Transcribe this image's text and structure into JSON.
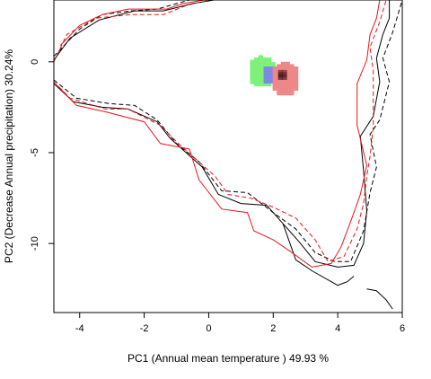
{
  "chart_data": {
    "type": "contour-density",
    "title": "",
    "xlabel": "PC1 (Annual mean temperature ) 49.93 %",
    "ylabel": "PC2 (Decrease Annual precipitation) 30.24%",
    "xlim": [
      -4.8,
      6.0
    ],
    "ylim": [
      -13.8,
      3.4
    ],
    "x_ticks": [
      -4,
      -2,
      0,
      2,
      4,
      6
    ],
    "y_ticks": [
      0,
      -5,
      -10
    ],
    "grid": false,
    "legend": "none",
    "colors": {
      "solid_black": "#000000",
      "dashed_black": "#000000",
      "solid_red": "#e8151f",
      "dashed_red": "#e8151f",
      "green": "#7cf27c",
      "blue": "#7c7cf0",
      "red_fill": "#ec8888",
      "dark_core": "#3a0d0d"
    },
    "series": [
      {
        "style": "solid-black",
        "upper_edge": [
          [
            -4.8,
            0.1
          ],
          [
            -4.3,
            1.3
          ],
          [
            -3.4,
            2.3
          ],
          [
            -2.3,
            2.8
          ],
          [
            -1.4,
            2.8
          ],
          [
            -0.5,
            3.2
          ],
          [
            0.5,
            3.5
          ]
        ],
        "outline": [
          [
            -4.8,
            -1.2
          ],
          [
            -4.2,
            -2.2
          ],
          [
            -3.3,
            -2.5
          ],
          [
            -2.5,
            -2.6
          ],
          [
            -1.6,
            -3.3
          ],
          [
            -1.2,
            -4.2
          ],
          [
            -0.7,
            -5.0
          ],
          [
            -0.2,
            -5.8
          ],
          [
            0.3,
            -7.3
          ],
          [
            1.0,
            -7.8
          ],
          [
            1.8,
            -7.9
          ],
          [
            2.3,
            -8.9
          ],
          [
            2.8,
            -9.9
          ],
          [
            3.3,
            -11.0
          ],
          [
            4.0,
            -11.3
          ],
          [
            4.5,
            -11.2
          ],
          [
            4.8,
            -10.0
          ],
          [
            4.9,
            -8.2
          ],
          [
            4.8,
            -6.0
          ],
          [
            4.7,
            -4.1
          ],
          [
            5.1,
            -3.0
          ],
          [
            5.3,
            -1.1
          ],
          [
            5.2,
            0.2
          ],
          [
            5.4,
            1.5
          ],
          [
            5.6,
            2.4
          ],
          [
            5.6,
            3.4
          ]
        ],
        "tail": [
          [
            2.3,
            -8.9
          ],
          [
            2.7,
            -10.9
          ],
          [
            3.2,
            -11.5
          ],
          [
            4.0,
            -12.3
          ],
          [
            4.3,
            -12.1
          ],
          [
            4.5,
            -11.8
          ]
        ],
        "corner": [
          [
            4.9,
            -12.5
          ],
          [
            5.2,
            -12.6
          ],
          [
            5.5,
            -13.1
          ],
          [
            5.7,
            -13.6
          ]
        ]
      },
      {
        "style": "dashed-black",
        "upper_edge": [
          [
            -4.8,
            0.3
          ],
          [
            -4.0,
            1.8
          ],
          [
            -3.3,
            2.6
          ],
          [
            -2.4,
            2.8
          ],
          [
            -1.6,
            2.9
          ],
          [
            -0.6,
            3.4
          ],
          [
            0.4,
            3.6
          ]
        ],
        "outline": [
          [
            -4.8,
            -1.0
          ],
          [
            -4.1,
            -2.0
          ],
          [
            -3.1,
            -2.3
          ],
          [
            -2.3,
            -2.4
          ],
          [
            -1.6,
            -3.2
          ],
          [
            -1.0,
            -4.5
          ],
          [
            -0.3,
            -5.5
          ],
          [
            0.4,
            -7.1
          ],
          [
            1.2,
            -7.2
          ],
          [
            2.0,
            -8.3
          ],
          [
            2.7,
            -9.2
          ],
          [
            3.3,
            -10.5
          ],
          [
            3.9,
            -11.0
          ],
          [
            4.4,
            -11.0
          ],
          [
            4.8,
            -9.3
          ],
          [
            5.0,
            -7.2
          ],
          [
            5.2,
            -5.8
          ],
          [
            5.0,
            -4.0
          ],
          [
            5.3,
            -3.2
          ],
          [
            5.6,
            -1.1
          ],
          [
            5.4,
            0.2
          ],
          [
            5.7,
            1.6
          ],
          [
            5.9,
            2.8
          ],
          [
            6.0,
            3.4
          ]
        ]
      },
      {
        "style": "solid-red",
        "upper_edge": [
          [
            -4.6,
            0.9
          ],
          [
            -4.0,
            2.0
          ],
          [
            -3.3,
            2.6
          ],
          [
            -2.5,
            2.9
          ],
          [
            -1.3,
            2.9
          ],
          [
            -0.8,
            3.2
          ],
          [
            0.2,
            3.5
          ]
        ],
        "outline": [
          [
            -4.7,
            -1.3
          ],
          [
            -4.1,
            -2.4
          ],
          [
            -3.1,
            -2.8
          ],
          [
            -2.0,
            -3.3
          ],
          [
            -1.5,
            -4.5
          ],
          [
            -0.6,
            -4.8
          ],
          [
            -0.3,
            -6.5
          ],
          [
            0.4,
            -8.1
          ],
          [
            1.2,
            -8.3
          ],
          [
            1.4,
            -9.3
          ],
          [
            2.0,
            -9.8
          ],
          [
            2.5,
            -10.4
          ],
          [
            3.2,
            -11.3
          ],
          [
            3.8,
            -11.1
          ],
          [
            4.1,
            -10.2
          ],
          [
            4.4,
            -8.8
          ],
          [
            4.7,
            -7.3
          ],
          [
            4.9,
            -5.7
          ],
          [
            4.6,
            -3.5
          ],
          [
            4.6,
            -1.2
          ],
          [
            4.9,
            0.1
          ],
          [
            5.0,
            1.5
          ],
          [
            5.2,
            2.4
          ],
          [
            5.3,
            3.4
          ]
        ]
      },
      {
        "style": "dashed-red",
        "upper_edge": [
          [
            -4.8,
            0.0
          ],
          [
            -4.4,
            1.5
          ],
          [
            -3.5,
            2.4
          ],
          [
            -2.4,
            2.6
          ],
          [
            -1.4,
            2.6
          ],
          [
            -0.7,
            3.1
          ],
          [
            0.3,
            3.5
          ]
        ],
        "outline": [
          [
            -4.8,
            -1.1
          ],
          [
            -4.3,
            -2.0
          ],
          [
            -3.2,
            -2.6
          ],
          [
            -2.5,
            -2.6
          ],
          [
            -1.5,
            -3.5
          ],
          [
            -1.0,
            -4.4
          ],
          [
            -0.5,
            -5.2
          ],
          [
            0.2,
            -6.3
          ],
          [
            0.6,
            -7.3
          ],
          [
            1.3,
            -7.5
          ],
          [
            2.0,
            -8.0
          ],
          [
            2.7,
            -8.6
          ],
          [
            3.3,
            -9.8
          ],
          [
            3.7,
            -11.0
          ],
          [
            4.2,
            -10.7
          ],
          [
            4.6,
            -9.2
          ],
          [
            4.8,
            -7.8
          ],
          [
            4.9,
            -6.3
          ],
          [
            5.0,
            -5.2
          ],
          [
            5.1,
            -3.6
          ],
          [
            5.1,
            -2.1
          ],
          [
            5.1,
            -0.5
          ],
          [
            5.0,
            0.8
          ],
          [
            5.3,
            2.2
          ],
          [
            5.5,
            3.4
          ]
        ]
      }
    ],
    "density_patches": [
      {
        "color": "green",
        "center": [
          1.6,
          -0.6
        ],
        "radius": [
          0.45,
          0.85
        ]
      },
      {
        "color": "blue",
        "center": [
          1.85,
          -0.8
        ],
        "radius": [
          0.28,
          0.5
        ]
      },
      {
        "color": "red",
        "center": [
          2.3,
          -1.0
        ],
        "radius": [
          0.45,
          0.95
        ]
      },
      {
        "color": "dark",
        "center": [
          2.2,
          -0.8
        ],
        "radius": [
          0.18,
          0.3
        ]
      }
    ]
  }
}
